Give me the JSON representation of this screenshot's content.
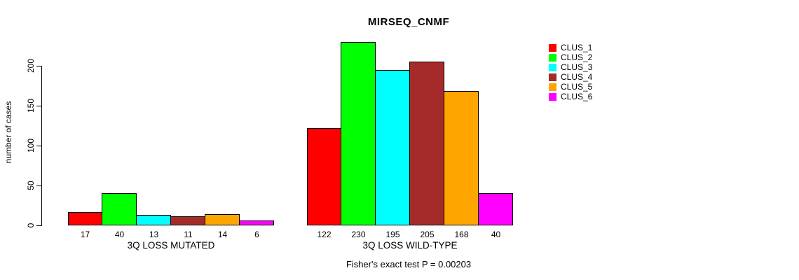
{
  "title": "MIRSEQ_CNMF",
  "footnote": "Fisher's exact test P = 0.00203",
  "y_axis": {
    "label": "number of cases",
    "ticks": [
      0,
      50,
      100,
      150,
      200
    ]
  },
  "legend": {
    "position": "right",
    "items": [
      {
        "label": "CLUS_1",
        "color": "#FF0000"
      },
      {
        "label": "CLUS_2",
        "color": "#00FF00"
      },
      {
        "label": "CLUS_3",
        "color": "#00FFFF"
      },
      {
        "label": "CLUS_4",
        "color": "#A52A2A"
      },
      {
        "label": "CLUS_5",
        "color": "#FFA500"
      },
      {
        "label": "CLUS_6",
        "color": "#FF00FF"
      }
    ]
  },
  "chart_data": {
    "type": "bar",
    "title": "MIRSEQ_CNMF",
    "xlabel": "",
    "ylabel": "number of cases",
    "ylim": [
      0,
      232
    ],
    "yticks": [
      0,
      50,
      100,
      150,
      200
    ],
    "grid": false,
    "legend_position": "right",
    "annotation": "Fisher's exact test P = 0.00203",
    "categories": [
      "3Q LOSS MUTATED",
      "3Q LOSS WILD-TYPE"
    ],
    "series": [
      {
        "name": "CLUS_1",
        "color": "#FF0000",
        "values": [
          17,
          122
        ]
      },
      {
        "name": "CLUS_2",
        "color": "#00FF00",
        "values": [
          40,
          230
        ]
      },
      {
        "name": "CLUS_3",
        "color": "#00FFFF",
        "values": [
          13,
          195
        ]
      },
      {
        "name": "CLUS_4",
        "color": "#A52A2A",
        "values": [
          11,
          205
        ]
      },
      {
        "name": "CLUS_5",
        "color": "#FFA500",
        "values": [
          14,
          168
        ]
      },
      {
        "name": "CLUS_6",
        "color": "#FF00FF",
        "values": [
          6,
          40
        ]
      }
    ],
    "bar_value_labels_shown": true
  }
}
